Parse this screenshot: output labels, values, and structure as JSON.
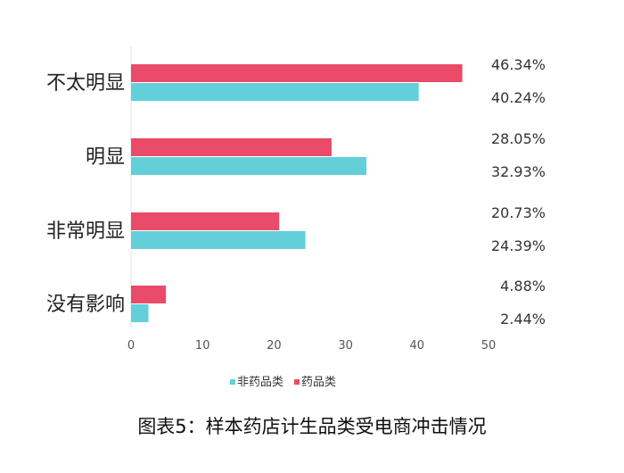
{
  "chart_data": {
    "type": "bar",
    "orientation": "horizontal",
    "categories": [
      "不太明显",
      "明显",
      "非常明显",
      "没有影响"
    ],
    "series": [
      {
        "name": "药品类",
        "color": "#e94b68",
        "values": [
          46.34,
          28.05,
          20.73,
          4.88
        ],
        "labels": [
          "46.34%",
          "28.05%",
          "20.73%",
          "4.88%"
        ]
      },
      {
        "name": "非药品类",
        "color": "#62cfd9",
        "values": [
          40.24,
          32.93,
          24.39,
          2.44
        ],
        "labels": [
          "40.24%",
          "32.93%",
          "24.39%",
          "2.44%"
        ]
      }
    ],
    "xlim": [
      0,
      50
    ],
    "xticks": [
      "0",
      "10",
      "20",
      "30",
      "40",
      "50"
    ],
    "grid": false,
    "legend": {
      "position": "bottom-center",
      "order": [
        "非药品类",
        "药品类"
      ]
    },
    "caption": "图表5：样本药店计生品类受电商冲击情况"
  }
}
